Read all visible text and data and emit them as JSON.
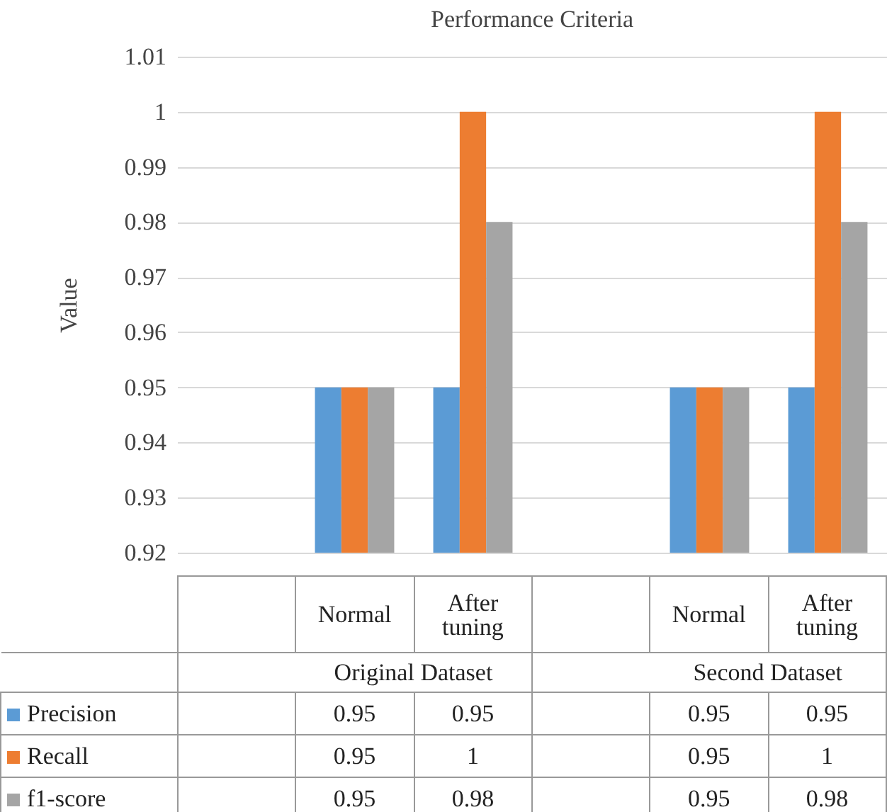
{
  "chart_data": {
    "type": "bar",
    "title": "Performance Criteria",
    "ylabel": "Value",
    "categories": [
      null,
      "Normal",
      "After tuning",
      null,
      "Normal",
      "After tuning"
    ],
    "series": [
      {
        "name": "Precision",
        "color": "#5b9bd5",
        "values": [
          null,
          0.95,
          0.95,
          null,
          0.95,
          0.95
        ]
      },
      {
        "name": "Recall",
        "color": "#ed7d31",
        "values": [
          null,
          0.95,
          1,
          null,
          0.95,
          1
        ]
      },
      {
        "name": "f1-score",
        "color": "#a5a5a5",
        "values": [
          null,
          0.95,
          0.98,
          null,
          0.95,
          0.98
        ]
      }
    ],
    "annotations": [
      "Original Dataset",
      "Second Dataset"
    ],
    "ylim": [
      0.92,
      1.01
    ],
    "yticks": [
      0.92,
      0.93,
      0.94,
      0.95,
      0.96,
      0.97,
      0.98,
      0.99,
      1,
      1.01
    ],
    "grid": "y",
    "legend": "bottom",
    "data_labels": true
  }
}
